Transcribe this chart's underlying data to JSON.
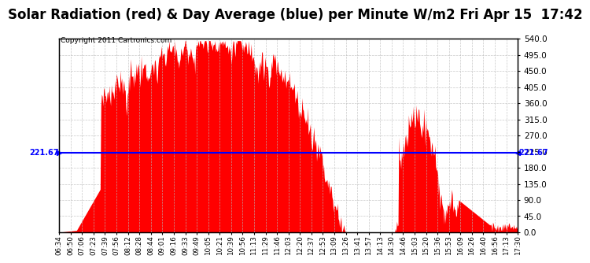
{
  "title": "Solar Radiation (red) & Day Average (blue) per Minute W/m2 Fri Apr 15  17:42",
  "copyright": "Copyright 2011 Cartronics.com",
  "avg_line_y": 221.67,
  "avg_label": "221.67",
  "ylim": [
    0,
    540
  ],
  "yticks": [
    0.0,
    45.0,
    90.0,
    135.0,
    180.0,
    225.0,
    270.0,
    315.0,
    360.0,
    405.0,
    450.0,
    495.0,
    540.0
  ],
  "fill_color": "#FF0000",
  "line_color": "#0000FF",
  "bg_color": "#FFFFFF",
  "grid_color": "#BBBBBB",
  "title_fontsize": 12,
  "copyright_fontsize": 6.5,
  "xtick_labels": [
    "06:34",
    "06:50",
    "07:06",
    "07:23",
    "07:39",
    "07:56",
    "08:12",
    "08:28",
    "08:44",
    "09:01",
    "09:16",
    "09:33",
    "09:49",
    "10:05",
    "10:21",
    "10:39",
    "10:56",
    "11:13",
    "11:29",
    "11:46",
    "12:03",
    "12:20",
    "12:37",
    "12:53",
    "13:09",
    "13:26",
    "13:41",
    "13:57",
    "14:13",
    "14:30",
    "14:46",
    "15:03",
    "15:20",
    "15:36",
    "15:53",
    "16:09",
    "16:26",
    "16:40",
    "16:56",
    "17:13",
    "17:30"
  ]
}
